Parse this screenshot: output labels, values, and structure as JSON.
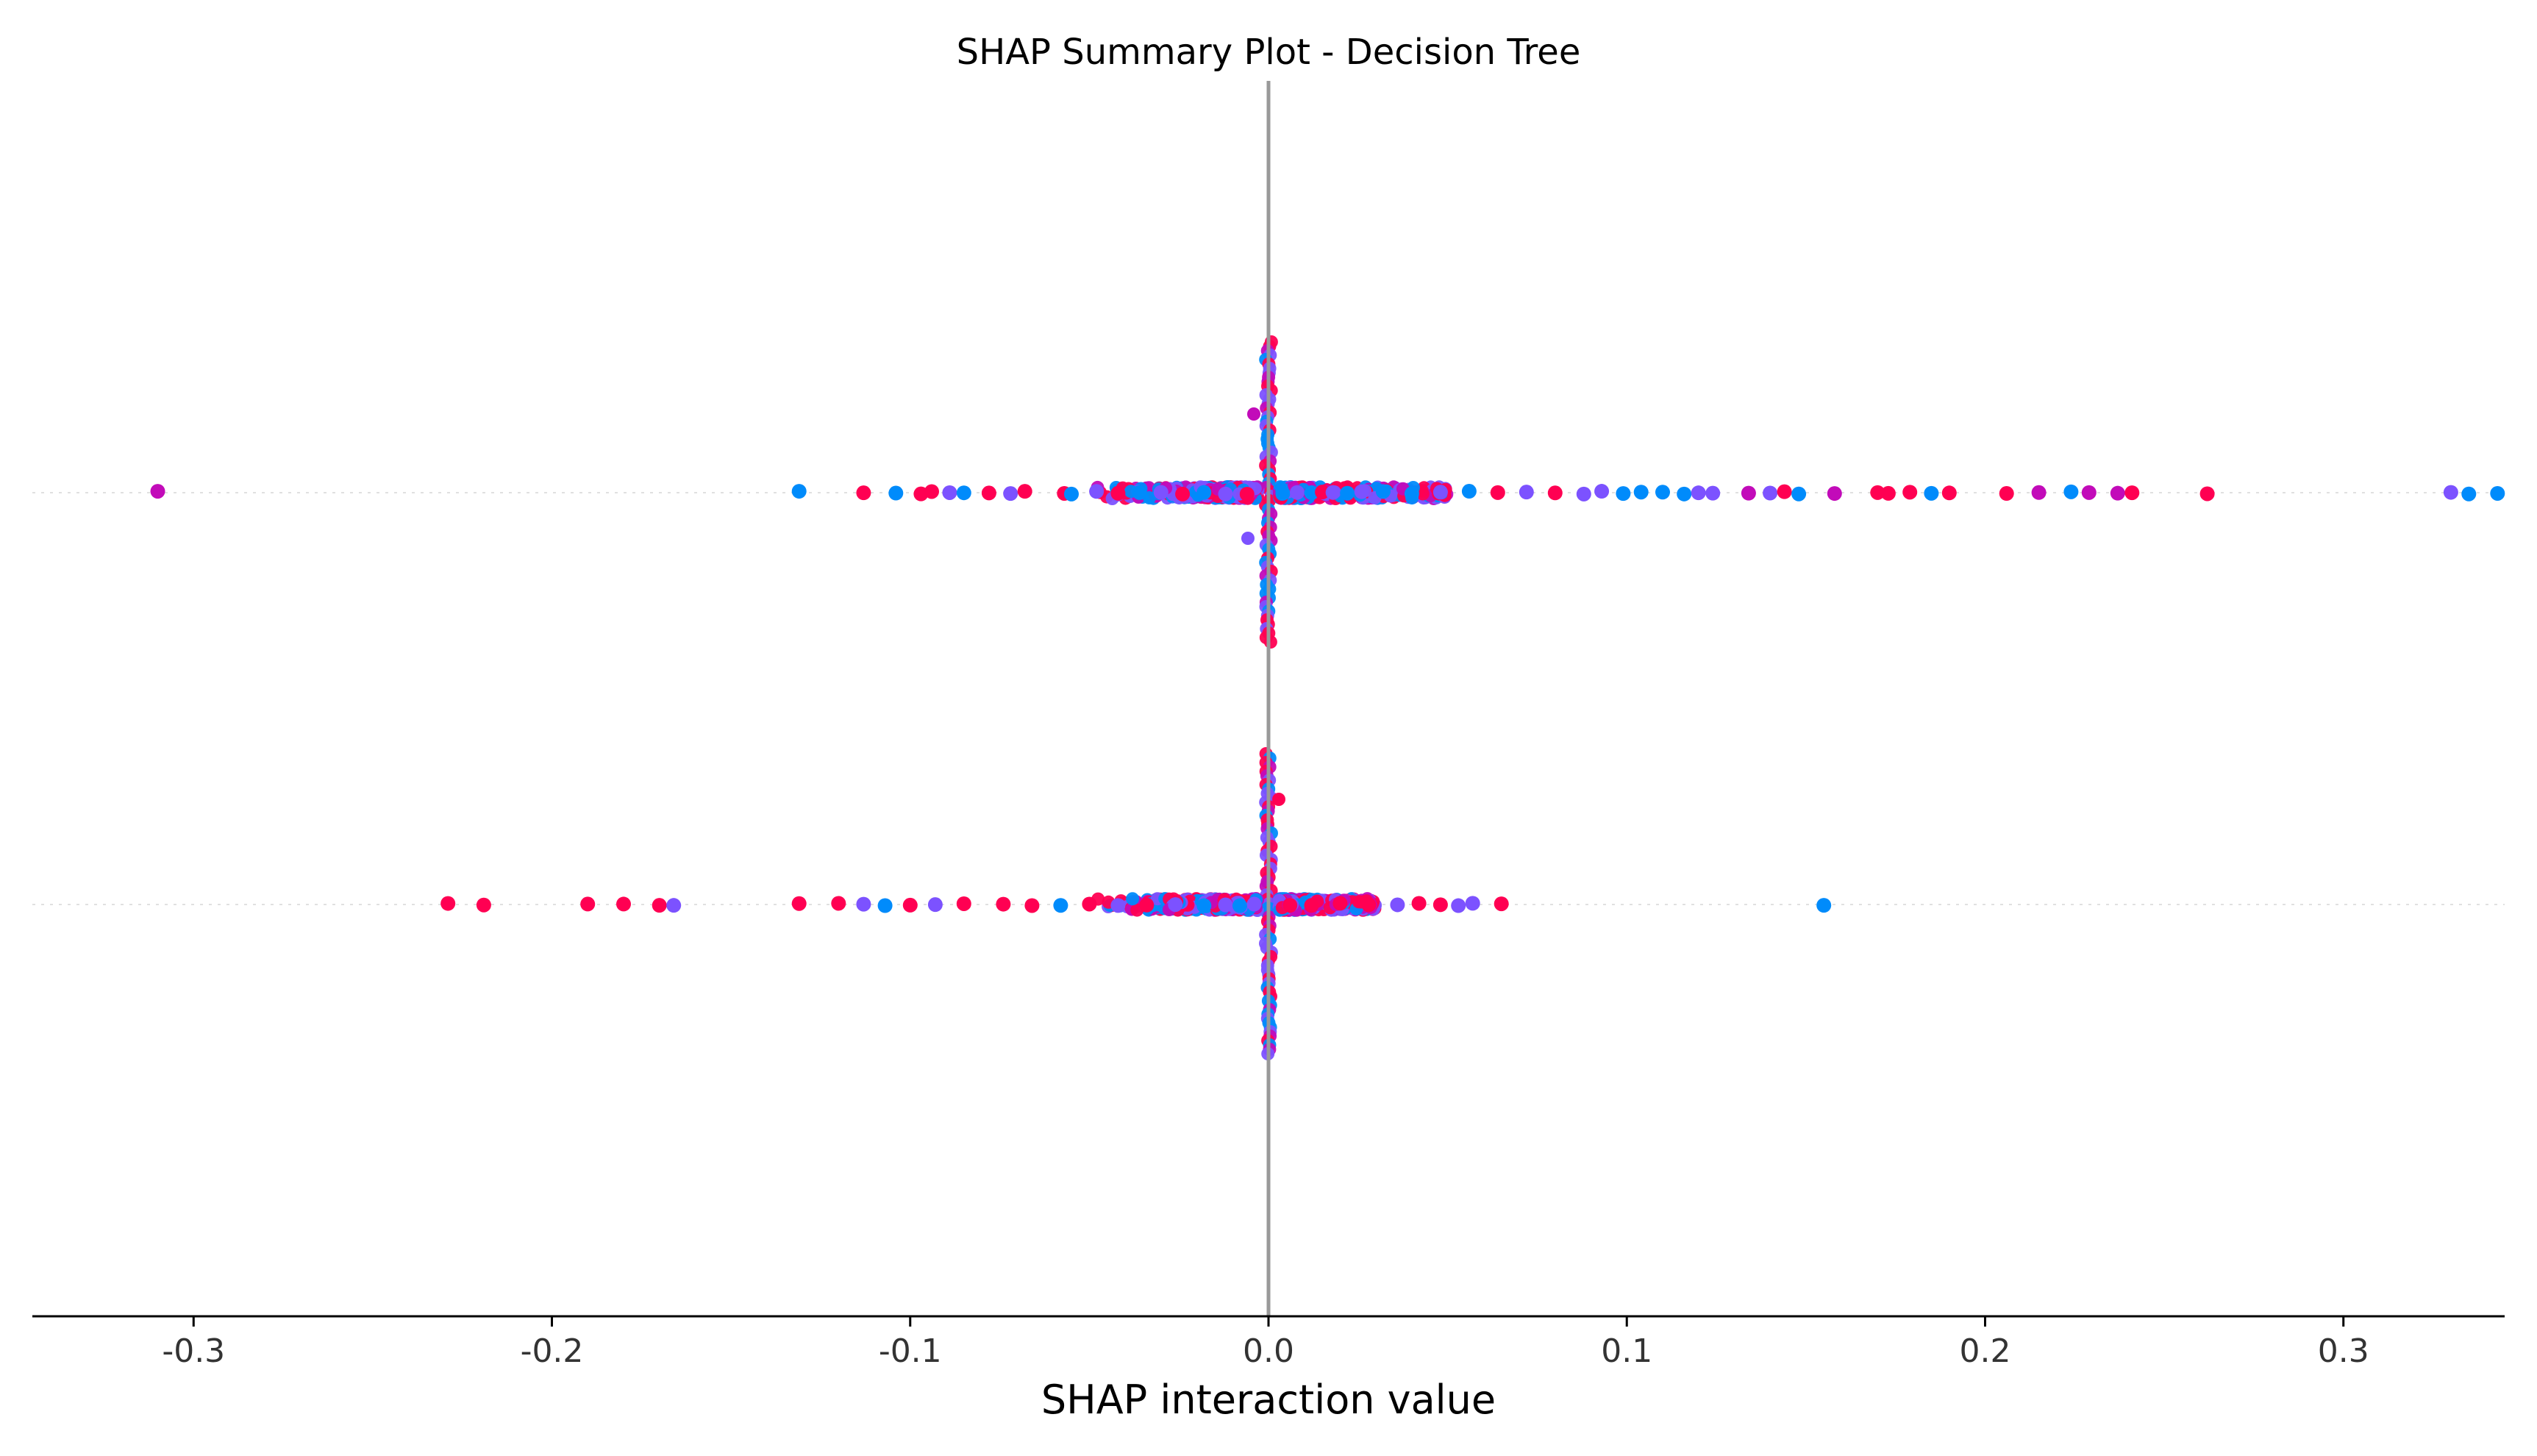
{
  "chart_data": {
    "type": "scatter",
    "title": "SHAP Summary Plot - Decision Tree",
    "xlabel": "SHAP interaction value",
    "ylabel": "",
    "xlim": [
      -0.345,
      0.345
    ],
    "xticks": [
      -0.3,
      -0.2,
      -0.1,
      0.0,
      0.1,
      0.2,
      0.3
    ],
    "xtick_labels": [
      "-0.3",
      "-0.2",
      "-0.1",
      "0.0",
      "0.1",
      "0.2",
      "0.3"
    ],
    "grid": false,
    "legend": "none",
    "colors": {
      "low": "#008bfb",
      "mid": "#7c52ff",
      "high": "#ff0052",
      "purple": "#c20bb9",
      "zero_line": "#999999",
      "row_guide": "#e0e0e0",
      "axis": "#000000"
    },
    "series": [
      {
        "row": 1,
        "points": [
          {
            "x": -0.31,
            "c": "purple"
          },
          {
            "x": -0.131,
            "c": "low"
          },
          {
            "x": -0.113,
            "c": "high"
          },
          {
            "x": -0.104,
            "c": "low"
          },
          {
            "x": -0.097,
            "c": "high"
          },
          {
            "x": -0.094,
            "c": "high"
          },
          {
            "x": -0.089,
            "c": "mid"
          },
          {
            "x": -0.085,
            "c": "low"
          },
          {
            "x": -0.078,
            "c": "high"
          },
          {
            "x": -0.072,
            "c": "mid"
          },
          {
            "x": -0.068,
            "c": "high"
          },
          {
            "x": -0.057,
            "c": "high"
          },
          {
            "x": -0.055,
            "c": "low"
          },
          {
            "x": -0.048,
            "c": "mid"
          },
          {
            "x": -0.042,
            "c": "high"
          },
          {
            "x": -0.036,
            "c": "low"
          },
          {
            "x": -0.03,
            "c": "mid"
          },
          {
            "x": -0.024,
            "c": "high"
          },
          {
            "x": -0.018,
            "c": "low"
          },
          {
            "x": -0.012,
            "c": "mid"
          },
          {
            "x": -0.006,
            "c": "high"
          },
          {
            "x": 0.004,
            "c": "low"
          },
          {
            "x": 0.008,
            "c": "mid"
          },
          {
            "x": 0.012,
            "c": "low"
          },
          {
            "x": 0.015,
            "c": "high"
          },
          {
            "x": 0.018,
            "c": "mid"
          },
          {
            "x": 0.022,
            "c": "low"
          },
          {
            "x": 0.026,
            "c": "mid"
          },
          {
            "x": 0.032,
            "c": "low"
          },
          {
            "x": 0.04,
            "c": "low"
          },
          {
            "x": 0.048,
            "c": "mid"
          },
          {
            "x": 0.056,
            "c": "low"
          },
          {
            "x": 0.064,
            "c": "high"
          },
          {
            "x": 0.072,
            "c": "mid"
          },
          {
            "x": 0.08,
            "c": "high"
          },
          {
            "x": 0.088,
            "c": "mid"
          },
          {
            "x": 0.093,
            "c": "mid"
          },
          {
            "x": 0.099,
            "c": "low"
          },
          {
            "x": 0.104,
            "c": "low"
          },
          {
            "x": 0.11,
            "c": "low"
          },
          {
            "x": 0.116,
            "c": "low"
          },
          {
            "x": 0.12,
            "c": "mid"
          },
          {
            "x": 0.124,
            "c": "mid"
          },
          {
            "x": 0.134,
            "c": "purple"
          },
          {
            "x": 0.14,
            "c": "mid"
          },
          {
            "x": 0.144,
            "c": "high"
          },
          {
            "x": 0.148,
            "c": "low"
          },
          {
            "x": 0.158,
            "c": "purple"
          },
          {
            "x": 0.17,
            "c": "high"
          },
          {
            "x": 0.173,
            "c": "high"
          },
          {
            "x": 0.179,
            "c": "high"
          },
          {
            "x": 0.185,
            "c": "low"
          },
          {
            "x": 0.19,
            "c": "high"
          },
          {
            "x": 0.206,
            "c": "high"
          },
          {
            "x": 0.215,
            "c": "purple"
          },
          {
            "x": 0.224,
            "c": "low"
          },
          {
            "x": 0.229,
            "c": "purple"
          },
          {
            "x": 0.237,
            "c": "purple"
          },
          {
            "x": 0.241,
            "c": "high"
          },
          {
            "x": 0.262,
            "c": "high"
          },
          {
            "x": 0.33,
            "c": "mid"
          },
          {
            "x": 0.335,
            "c": "low"
          },
          {
            "x": 0.343,
            "c": "low"
          }
        ]
      },
      {
        "row": 2,
        "points": [
          {
            "x": -0.229,
            "c": "high"
          },
          {
            "x": -0.219,
            "c": "high"
          },
          {
            "x": -0.19,
            "c": "high"
          },
          {
            "x": -0.18,
            "c": "high"
          },
          {
            "x": -0.17,
            "c": "high"
          },
          {
            "x": -0.166,
            "c": "mid"
          },
          {
            "x": -0.131,
            "c": "high"
          },
          {
            "x": -0.12,
            "c": "high"
          },
          {
            "x": -0.113,
            "c": "mid"
          },
          {
            "x": -0.107,
            "c": "low"
          },
          {
            "x": -0.1,
            "c": "high"
          },
          {
            "x": -0.093,
            "c": "mid"
          },
          {
            "x": -0.085,
            "c": "high"
          },
          {
            "x": -0.074,
            "c": "high"
          },
          {
            "x": -0.066,
            "c": "high"
          },
          {
            "x": -0.058,
            "c": "low"
          },
          {
            "x": -0.05,
            "c": "high"
          },
          {
            "x": -0.042,
            "c": "mid"
          },
          {
            "x": -0.034,
            "c": "high"
          },
          {
            "x": -0.026,
            "c": "mid"
          },
          {
            "x": -0.018,
            "c": "low"
          },
          {
            "x": -0.012,
            "c": "mid"
          },
          {
            "x": -0.008,
            "c": "low"
          },
          {
            "x": -0.004,
            "c": "mid"
          },
          {
            "x": 0.006,
            "c": "high"
          },
          {
            "x": 0.012,
            "c": "high"
          },
          {
            "x": 0.02,
            "c": "high"
          },
          {
            "x": 0.028,
            "c": "high"
          },
          {
            "x": 0.036,
            "c": "mid"
          },
          {
            "x": 0.042,
            "c": "high"
          },
          {
            "x": 0.048,
            "c": "high"
          },
          {
            "x": 0.053,
            "c": "mid"
          },
          {
            "x": 0.057,
            "c": "mid"
          },
          {
            "x": 0.065,
            "c": "high"
          },
          {
            "x": 0.155,
            "c": "low"
          }
        ]
      }
    ]
  }
}
